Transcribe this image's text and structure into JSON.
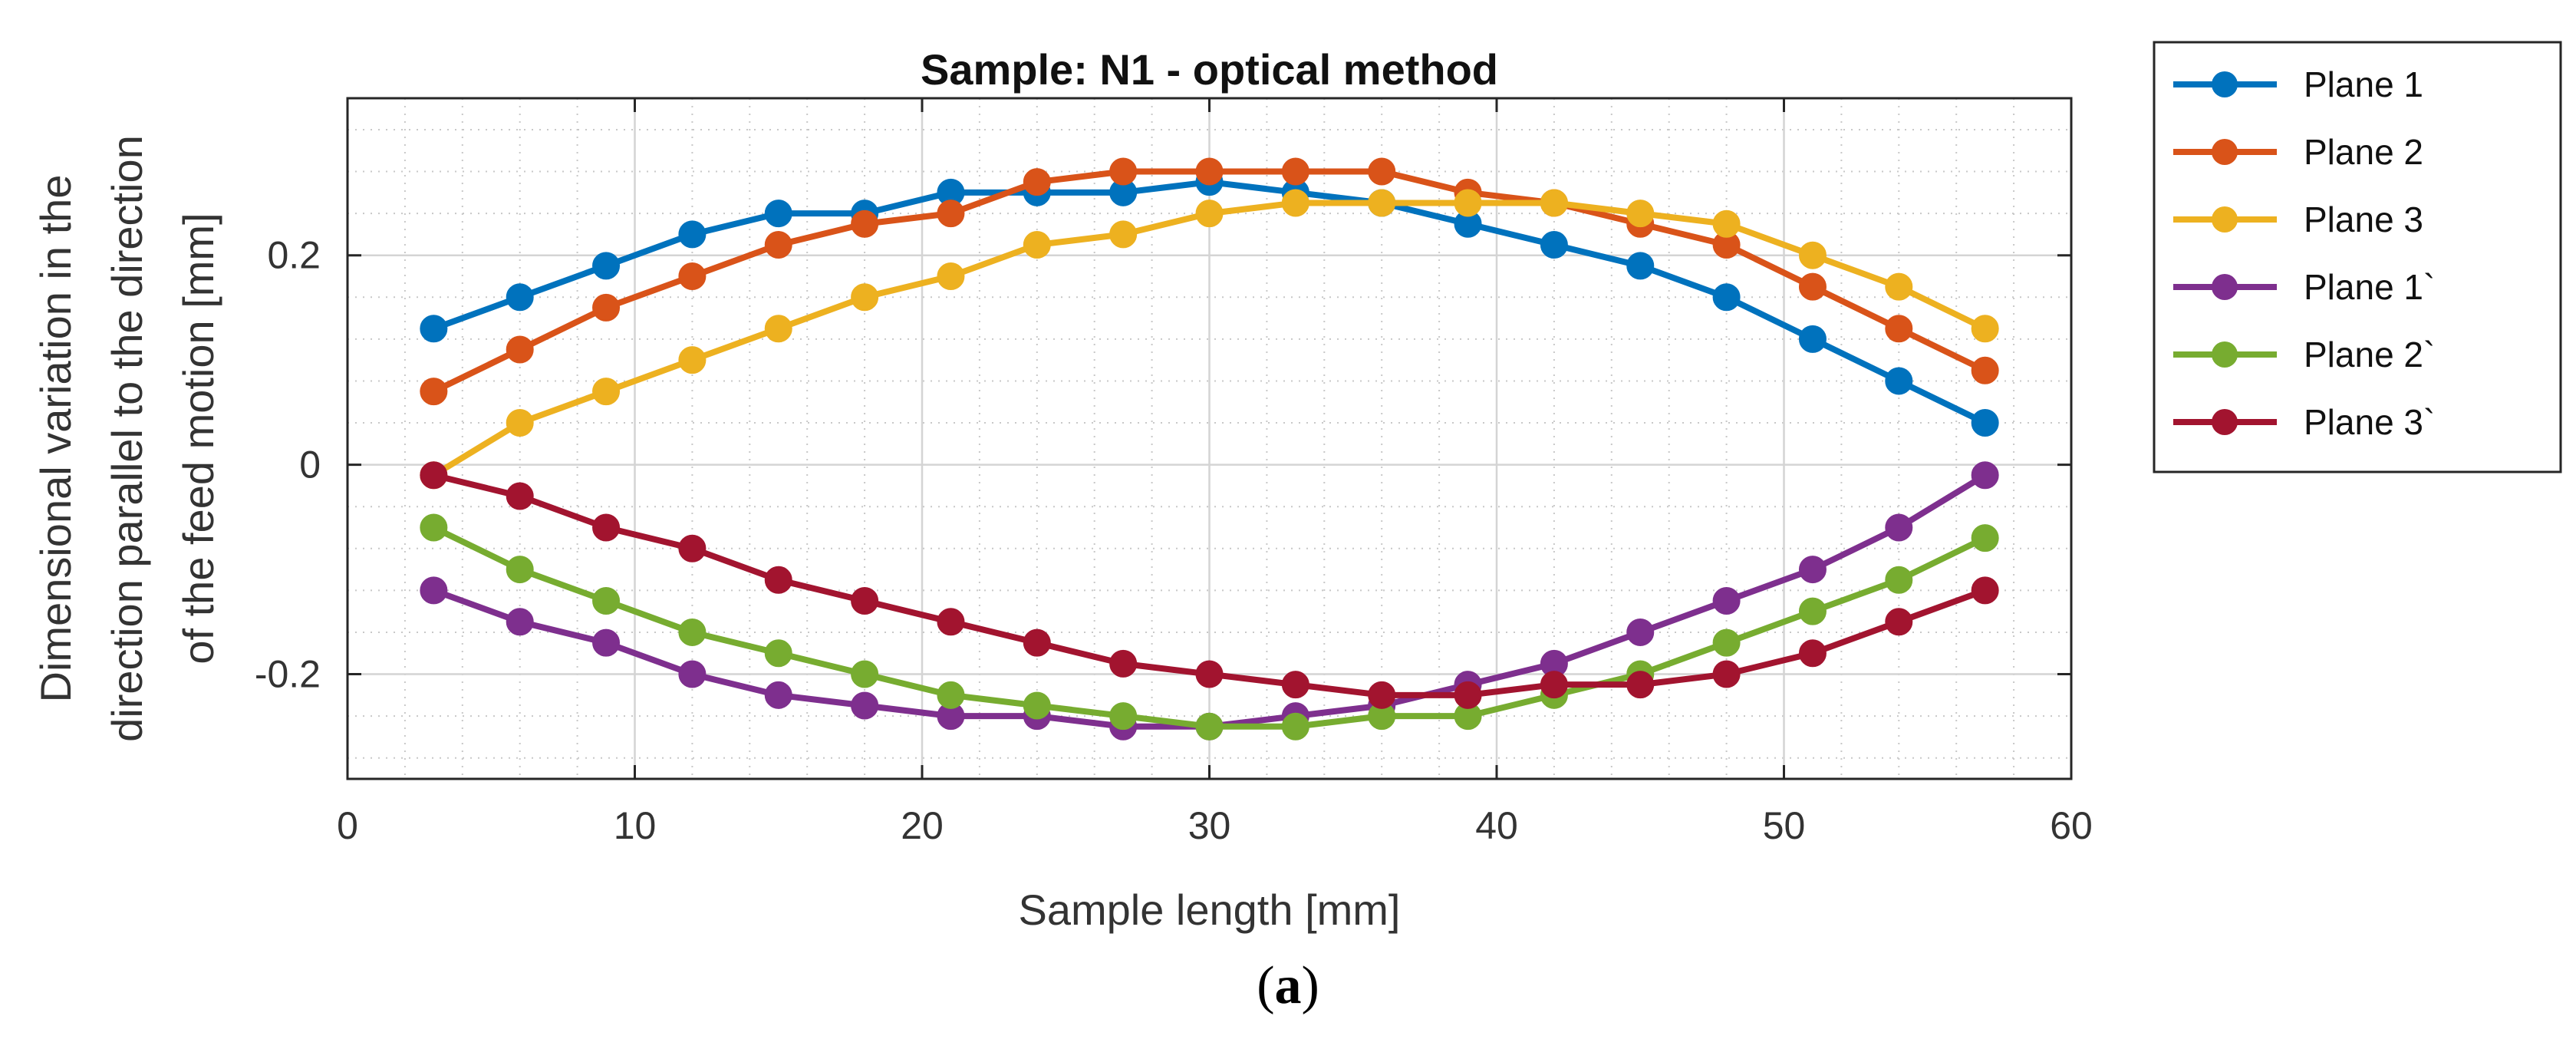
{
  "chart_data": {
    "type": "line",
    "title": "Sample: N1 - optical method",
    "xlabel": "Sample length [mm]",
    "ylabel_lines": [
      "Dimensional variation in the",
      "direction parallel to the direction",
      "of the feed motion [mm]"
    ],
    "xlim": [
      0,
      60
    ],
    "ylim": [
      -0.3,
      0.35
    ],
    "xticks": [
      0,
      10,
      20,
      30,
      40,
      50,
      60
    ],
    "yticks": [
      -0.2,
      0,
      0.2
    ],
    "xtick_labels": [
      "0",
      "10",
      "20",
      "30",
      "40",
      "50",
      "60"
    ],
    "ytick_labels": [
      "-0.2",
      "0",
      "0.2"
    ],
    "grid": true,
    "minor_grid": true,
    "legend_position": "outside-right",
    "x": [
      3,
      6,
      9,
      12,
      15,
      18,
      21,
      24,
      27,
      30,
      33,
      36,
      39,
      42,
      45,
      48,
      51,
      54,
      57
    ],
    "series": [
      {
        "name": "Plane 1",
        "color": "#0072BD",
        "values": [
          0.13,
          0.16,
          0.19,
          0.22,
          0.24,
          0.24,
          0.26,
          0.26,
          0.26,
          0.27,
          0.26,
          0.25,
          0.23,
          0.21,
          0.19,
          0.16,
          0.12,
          0.08,
          0.04
        ]
      },
      {
        "name": "Plane 2",
        "color": "#D95319",
        "values": [
          0.07,
          0.11,
          0.15,
          0.18,
          0.21,
          0.23,
          0.24,
          0.27,
          0.28,
          0.28,
          0.28,
          0.28,
          0.26,
          0.25,
          0.23,
          0.21,
          0.17,
          0.13,
          0.09
        ]
      },
      {
        "name": "Plane 3",
        "color": "#EDB120",
        "values": [
          -0.01,
          0.04,
          0.07,
          0.1,
          0.13,
          0.16,
          0.18,
          0.21,
          0.22,
          0.24,
          0.25,
          0.25,
          0.25,
          0.25,
          0.24,
          0.23,
          0.2,
          0.17,
          0.13
        ]
      },
      {
        "name": "Plane 1`",
        "color": "#7E2F8E",
        "values": [
          -0.12,
          -0.15,
          -0.17,
          -0.2,
          -0.22,
          -0.23,
          -0.24,
          -0.24,
          -0.25,
          -0.25,
          -0.24,
          -0.23,
          -0.21,
          -0.19,
          -0.16,
          -0.13,
          -0.1,
          -0.06,
          -0.01
        ]
      },
      {
        "name": "Plane 2`",
        "color": "#77AC30",
        "values": [
          -0.06,
          -0.1,
          -0.13,
          -0.16,
          -0.18,
          -0.2,
          -0.22,
          -0.23,
          -0.24,
          -0.25,
          -0.25,
          -0.24,
          -0.24,
          -0.22,
          -0.2,
          -0.17,
          -0.14,
          -0.11,
          -0.07
        ]
      },
      {
        "name": "Plane 3`",
        "color": "#A2142F",
        "values": [
          -0.01,
          -0.03,
          -0.06,
          -0.08,
          -0.11,
          -0.13,
          -0.15,
          -0.17,
          -0.19,
          -0.2,
          -0.21,
          -0.22,
          -0.22,
          -0.21,
          -0.21,
          -0.2,
          -0.18,
          -0.15,
          -0.12
        ]
      }
    ]
  },
  "caption": {
    "open": "(",
    "letter": "a",
    "close": ")"
  }
}
